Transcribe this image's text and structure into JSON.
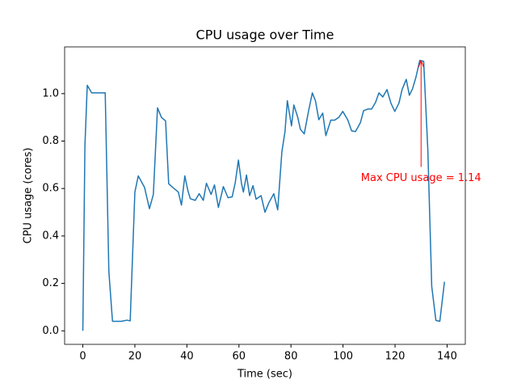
{
  "chart_data": {
    "type": "line",
    "title": "CPU usage over Time",
    "x_label": "Time (sec)",
    "y_label": "CPU usage (cores)",
    "x": [
      0,
      0.8,
      1.7,
      3.4,
      8.6,
      10,
      11.4,
      14.8,
      17,
      18.2,
      20,
      21.3,
      23.7,
      25.6,
      27.1,
      28.7,
      30.2,
      31.8,
      33,
      34.5,
      36.7,
      37.9,
      39.2,
      40.4,
      41.3,
      43.2,
      44.7,
      46.3,
      47.5,
      49.3,
      50.6,
      52.1,
      54,
      55.8,
      57.4,
      58.6,
      59.8,
      61,
      61.7,
      62.9,
      64.1,
      65.4,
      66.6,
      68.5,
      70,
      71.5,
      73.4,
      74.9,
      76.5,
      77.7,
      78.6,
      80.2,
      81.1,
      82.6,
      83.6,
      85.1,
      86.6,
      88.2,
      89.4,
      90.7,
      92.2,
      93.4,
      95.3,
      96.8,
      98.4,
      99.9,
      101.8,
      103.3,
      104.8,
      106.7,
      107.9,
      109.5,
      111,
      112.5,
      113.8,
      115.3,
      116.9,
      118.4,
      119.9,
      121.5,
      122.7,
      124.3,
      125.5,
      126.7,
      128,
      129.5,
      131,
      132.6,
      134.1,
      135.7,
      137.2,
      139
    ],
    "series": [
      {
        "name": "CPU usage",
        "color": "#1f77b4",
        "values": [
          0,
          0.78,
          1.035,
          1.003,
          1.003,
          0.25,
          0.04,
          0.04,
          0.045,
          0.042,
          0.585,
          0.653,
          0.605,
          0.515,
          0.575,
          0.94,
          0.9,
          0.885,
          0.62,
          0.605,
          0.585,
          0.53,
          0.653,
          0.59,
          0.557,
          0.55,
          0.578,
          0.55,
          0.622,
          0.575,
          0.615,
          0.52,
          0.608,
          0.561,
          0.565,
          0.626,
          0.72,
          0.62,
          0.585,
          0.657,
          0.57,
          0.612,
          0.555,
          0.57,
          0.5,
          0.54,
          0.578,
          0.51,
          0.755,
          0.84,
          0.97,
          0.864,
          0.952,
          0.9,
          0.85,
          0.83,
          0.918,
          1.003,
          0.97,
          0.89,
          0.918,
          0.823,
          0.888,
          0.888,
          0.9,
          0.925,
          0.89,
          0.843,
          0.84,
          0.878,
          0.928,
          0.935,
          0.935,
          0.963,
          1.003,
          0.986,
          1.017,
          0.96,
          0.925,
          0.96,
          1.017,
          1.06,
          0.993,
          1.02,
          1.068,
          1.14,
          1.136,
          0.762,
          0.187,
          0.044,
          0.04,
          0.207
        ]
      }
    ],
    "xlim": [
      -7,
      147
    ],
    "ylim": [
      -0.057,
      1.197
    ],
    "xticks": [
      0,
      20,
      40,
      60,
      80,
      100,
      120,
      140
    ],
    "yticks": [
      {
        "value": 0,
        "label": "0.0"
      },
      {
        "value": 0.2,
        "label": "0.2"
      },
      {
        "value": 0.4,
        "label": "0.4"
      },
      {
        "value": 0.6,
        "label": "0.6"
      },
      {
        "value": 0.8,
        "label": "0.8"
      },
      {
        "value": 1,
        "label": "1.0"
      }
    ],
    "annotation": {
      "text": "Max CPU usage = 1.14",
      "x": 130,
      "y": 1.14,
      "text_y": 0.65,
      "color": "#ff0000"
    }
  }
}
